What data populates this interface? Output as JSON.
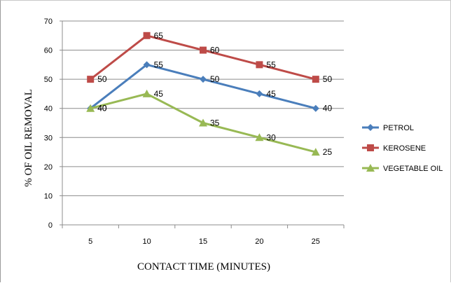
{
  "chart_data": {
    "type": "line",
    "title": "",
    "xlabel": "CONTACT TIME (MINUTES)",
    "ylabel": "% OF OIL REMOVAL",
    "categories": [
      "5",
      "10",
      "15",
      "20",
      "25"
    ],
    "x": [
      5,
      10,
      15,
      20,
      25
    ],
    "ylim": [
      0,
      70
    ],
    "yticks": [
      0,
      10,
      20,
      30,
      40,
      50,
      60,
      70
    ],
    "grid": true,
    "legend_position": "right",
    "series": [
      {
        "name": "PETROL",
        "values": [
          40,
          55,
          50,
          45,
          40
        ],
        "color": "#4A7EBB",
        "marker": "diamond"
      },
      {
        "name": "KEROSENE",
        "values": [
          50,
          65,
          60,
          55,
          50
        ],
        "color": "#BE4B48",
        "marker": "square"
      },
      {
        "name": "VEGETABLE OIL",
        "values": [
          40,
          45,
          35,
          30,
          25
        ],
        "color": "#98B954",
        "marker": "triangle"
      }
    ]
  }
}
